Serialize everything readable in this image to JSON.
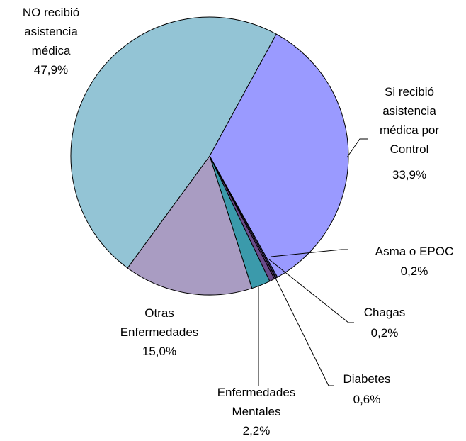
{
  "chart_data": {
    "type": "pie",
    "categories": [
      "NO recibió asistencia médica",
      "Si recibió asistencia médica por Control",
      "Asma o EPOC",
      "Chagas",
      "Diabetes",
      "Enfermedades Mentales",
      "Otras Enfermedades"
    ],
    "values": [
      47.9,
      33.9,
      0.2,
      0.2,
      0.6,
      2.2,
      15.0
    ],
    "value_labels": [
      "47,9%",
      "33,9%",
      "0,2%",
      "0,2%",
      "0,6%",
      "2,2%",
      "15,0%"
    ],
    "colors": [
      "#93c4d5",
      "#9a9aff",
      "#2e2e5e",
      "#5a3a6a",
      "#6a4a8a",
      "#3b9aab",
      "#a99cc2"
    ]
  }
}
